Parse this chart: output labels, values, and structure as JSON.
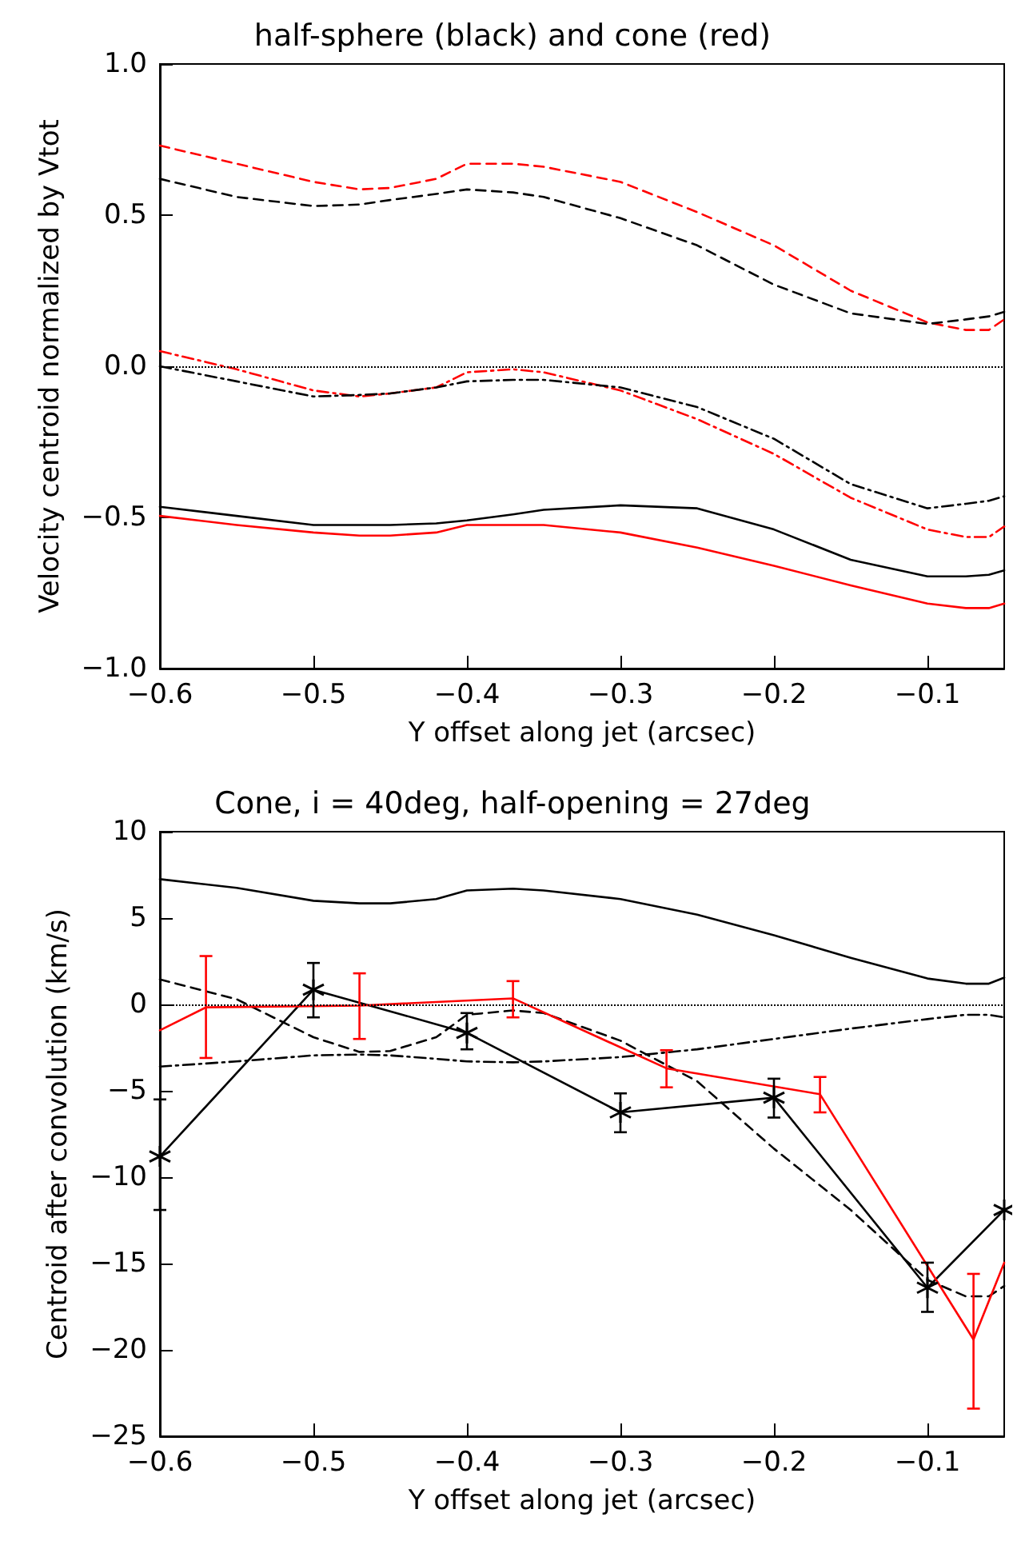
{
  "chart_data": [
    {
      "type": "line",
      "title": "half-sphere (black) and cone (red)",
      "xlabel": "Y offset along jet (arcsec)",
      "ylabel": "Velocity centroid normalized by Vtot",
      "x": [
        -0.6,
        -0.55,
        -0.5,
        -0.47,
        -0.45,
        -0.42,
        -0.4,
        -0.37,
        -0.35,
        -0.3,
        -0.25,
        -0.2,
        -0.15,
        -0.1,
        -0.075,
        -0.06,
        -0.05
      ],
      "series": [
        {
          "color": "#ff0000",
          "line_style": "dashed",
          "values": [
            0.73,
            0.67,
            0.61,
            0.585,
            0.59,
            0.62,
            0.67,
            0.67,
            0.66,
            0.61,
            0.51,
            0.4,
            0.25,
            0.145,
            0.12,
            0.12,
            0.155
          ]
        },
        {
          "color": "#000000",
          "line_style": "dashed",
          "values": [
            0.62,
            0.56,
            0.53,
            0.535,
            0.55,
            0.57,
            0.585,
            0.575,
            0.56,
            0.49,
            0.4,
            0.27,
            0.175,
            0.14,
            0.155,
            0.165,
            0.18
          ]
        },
        {
          "color": "#ff0000",
          "line_style": "dashdot",
          "values": [
            0.05,
            -0.01,
            -0.08,
            -0.1,
            -0.09,
            -0.07,
            -0.02,
            -0.01,
            -0.02,
            -0.08,
            -0.175,
            -0.29,
            -0.435,
            -0.54,
            -0.565,
            -0.565,
            -0.53
          ]
        },
        {
          "color": "#000000",
          "line_style": "dashdot",
          "values": [
            0,
            -0.05,
            -0.1,
            -0.095,
            -0.09,
            -0.07,
            -0.05,
            -0.045,
            -0.045,
            -0.07,
            -0.135,
            -0.24,
            -0.39,
            -0.47,
            -0.455,
            -0.445,
            -0.43
          ]
        },
        {
          "color": "#000000",
          "line_style": "solid",
          "values": [
            -0.465,
            -0.495,
            -0.525,
            -0.525,
            -0.525,
            -0.52,
            -0.51,
            -0.49,
            -0.475,
            -0.46,
            -0.47,
            -0.54,
            -0.64,
            -0.695,
            -0.695,
            -0.69,
            -0.675
          ]
        },
        {
          "color": "#ff0000",
          "line_style": "solid",
          "values": [
            -0.495,
            -0.525,
            -0.55,
            -0.56,
            -0.56,
            -0.55,
            -0.525,
            -0.525,
            -0.525,
            -0.55,
            -0.6,
            -0.66,
            -0.725,
            -0.785,
            -0.8,
            -0.8,
            -0.785
          ]
        }
      ],
      "xlim": [
        -0.6,
        -0.05
      ],
      "xticks": [
        {
          "value": -0.6,
          "label": "−0.6"
        },
        {
          "value": -0.5,
          "label": "−0.5"
        },
        {
          "value": -0.4,
          "label": "−0.4"
        },
        {
          "value": -0.3,
          "label": "−0.3"
        },
        {
          "value": -0.2,
          "label": "−0.2"
        },
        {
          "value": -0.1,
          "label": "−0.1"
        }
      ],
      "ylim": [
        -1,
        1
      ],
      "yticks": [
        {
          "value": -1,
          "label": "−1.0"
        },
        {
          "value": -0.5,
          "label": "−0.5"
        },
        {
          "value": 0,
          "label": "0.0"
        },
        {
          "value": 0.5,
          "label": "0.5"
        },
        {
          "value": 1,
          "label": "1.0"
        }
      ],
      "ref_lines": [
        {
          "axis": "y",
          "value": 0,
          "label": null,
          "color": "#000000",
          "line_style": "dotted"
        }
      ]
    },
    {
      "type": "line",
      "title": "Cone, i = 40deg, half-opening = 27deg",
      "xlabel": "Y offset along jet (arcsec)",
      "ylabel": "Centroid after convolution (km/s)",
      "x": [
        -0.6,
        -0.55,
        -0.5,
        -0.47,
        -0.45,
        -0.42,
        -0.4,
        -0.37,
        -0.35,
        -0.3,
        -0.25,
        -0.2,
        -0.15,
        -0.1,
        -0.075,
        -0.06,
        -0.05
      ],
      "series": [
        {
          "color": "#000000",
          "line_style": "solid",
          "values": [
            7.25,
            6.75,
            6.0,
            5.85,
            5.85,
            6.1,
            6.6,
            6.7,
            6.6,
            6.1,
            5.2,
            4.0,
            2.7,
            1.5,
            1.2,
            1.2,
            1.55
          ]
        },
        {
          "color": "#000000",
          "line_style": "dashed",
          "values": [
            1.45,
            0.3,
            -1.9,
            -2.75,
            -2.7,
            -1.9,
            -0.6,
            -0.35,
            -0.5,
            -2.1,
            -4.45,
            -8.35,
            -11.9,
            -15.95,
            -16.9,
            -16.9,
            -16.3
          ]
        },
        {
          "color": "#000000",
          "line_style": "dashdot",
          "values": [
            -3.6,
            -3.3,
            -2.95,
            -2.9,
            -2.95,
            -3.15,
            -3.3,
            -3.35,
            -3.3,
            -3.05,
            -2.6,
            -2.0,
            -1.4,
            -0.85,
            -0.6,
            -0.6,
            -0.75
          ]
        },
        {
          "color": "#000000",
          "line_style": "solid",
          "marker": "cross",
          "x": [
            -0.6,
            -0.5,
            -0.4,
            -0.3,
            -0.2,
            -0.1,
            -0.05
          ],
          "values": [
            -8.8,
            0.85,
            -1.65,
            -6.25,
            -5.4,
            -16.4,
            -11.9
          ],
          "errors": [
            [
              -11.9,
              -5.5
            ],
            [
              -0.75,
              2.4
            ],
            [
              -2.6,
              -0.5
            ],
            [
              -7.4,
              -5.15
            ],
            [
              -6.55,
              -4.3
            ],
            [
              -17.8,
              -14.95
            ],
            null
          ]
        },
        {
          "color": "#ff0000",
          "line_style": "solid",
          "marker": "none",
          "x": [
            -0.6,
            -0.57,
            -0.47,
            -0.37,
            -0.27,
            -0.17,
            -0.07,
            -0.05
          ],
          "values": [
            -1.5,
            -0.17,
            -0.07,
            0.35,
            -3.7,
            -5.2,
            -19.4,
            -14.95
          ],
          "errors": [
            null,
            [
              -3.1,
              2.8
            ],
            [
              -2.0,
              1.8
            ],
            [
              -0.75,
              1.35
            ],
            [
              -4.8,
              -2.65
            ],
            [
              -6.25,
              -4.2
            ],
            [
              -23.4,
              -15.6
            ],
            null
          ]
        }
      ],
      "xlim": [
        -0.6,
        -0.05
      ],
      "xticks": [
        {
          "value": -0.6,
          "label": "−0.6"
        },
        {
          "value": -0.5,
          "label": "−0.5"
        },
        {
          "value": -0.4,
          "label": "−0.4"
        },
        {
          "value": -0.3,
          "label": "−0.3"
        },
        {
          "value": -0.2,
          "label": "−0.2"
        },
        {
          "value": -0.1,
          "label": "−0.1"
        }
      ],
      "ylim": [
        -25,
        10
      ],
      "yticks": [
        {
          "value": -25,
          "label": "−25"
        },
        {
          "value": -20,
          "label": "−20"
        },
        {
          "value": -15,
          "label": "−15"
        },
        {
          "value": -10,
          "label": "−10"
        },
        {
          "value": -5,
          "label": "−5"
        },
        0,
        5,
        10
      ],
      "ref_lines": [
        {
          "axis": "y",
          "value": 0,
          "label": null,
          "color": "#000000",
          "line_style": "dotted"
        }
      ]
    }
  ]
}
